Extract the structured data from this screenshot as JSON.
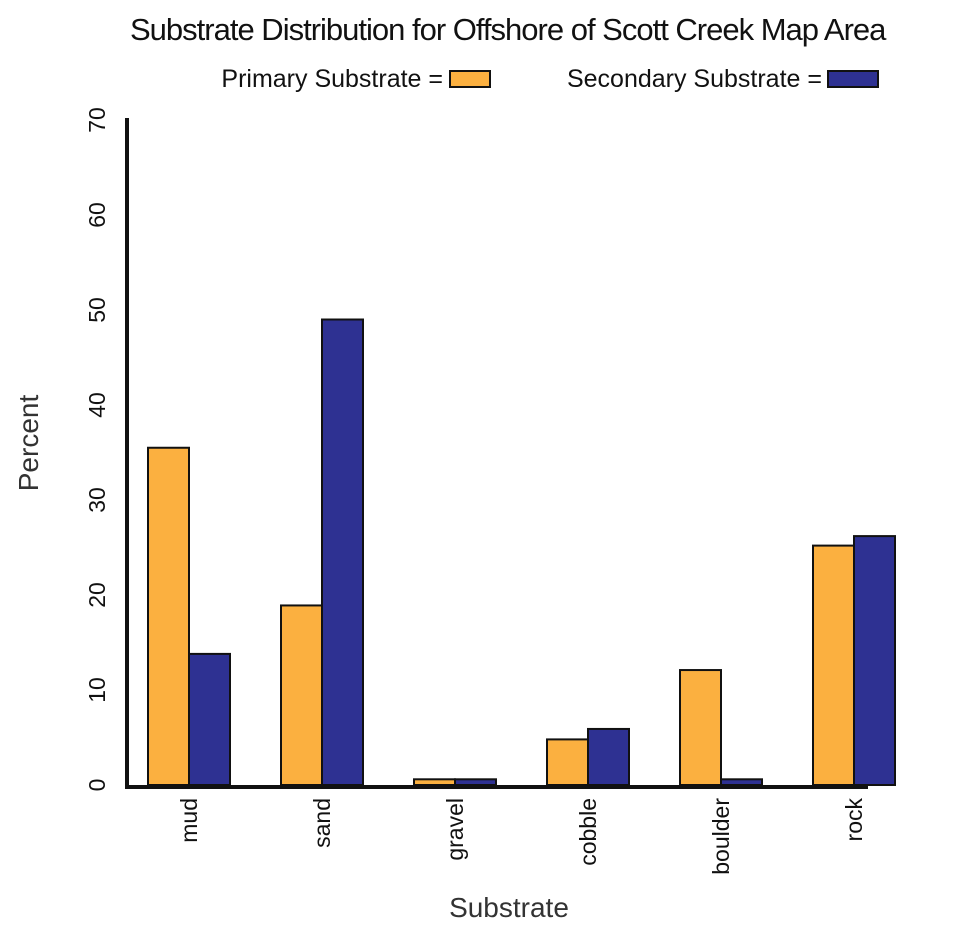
{
  "chart_data": {
    "type": "bar",
    "title": "Substrate Distribution for Offshore of Scott Creek Map Area",
    "xlabel": "Substrate",
    "ylabel": "Percent",
    "categories": [
      "mud",
      "sand",
      "gravel",
      "cobble",
      "boulder",
      "rock"
    ],
    "series": [
      {
        "name": "Primary Substrate",
        "legend_label": "Primary Substrate =",
        "color": "#FBB040",
        "values": [
          35.5,
          18.9,
          0.6,
          4.8,
          12.1,
          25.2
        ]
      },
      {
        "name": "Secondary Substrate",
        "legend_label": "Secondary Substrate =",
        "color": "#2E3192",
        "values": [
          13.8,
          49.0,
          0.6,
          5.9,
          0.6,
          26.2
        ]
      }
    ],
    "ylim": [
      0,
      70
    ],
    "yticks": [
      "0",
      "10",
      "20",
      "30",
      "40",
      "50",
      "60",
      "70"
    ],
    "grid": false,
    "legend_position": "top"
  }
}
